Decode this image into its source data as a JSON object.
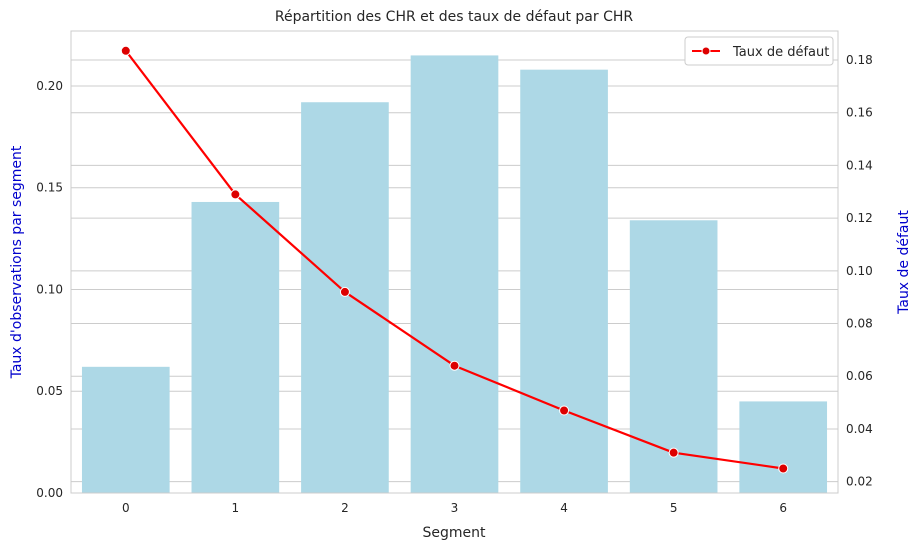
{
  "chart_data": {
    "type": "bar",
    "title": "Répartition des CHR et des taux de défaut par CHR",
    "xlabel": "Segment",
    "ylabel_left": "Taux d'observations par segment",
    "ylabel_right": "Taux de défaut",
    "categories": [
      "0",
      "1",
      "2",
      "3",
      "4",
      "5",
      "6"
    ],
    "ylim_left": [
      0,
      0.227
    ],
    "ylim_right": [
      0.0157,
      0.191
    ],
    "yticks_left": [
      "0.00",
      "0.05",
      "0.10",
      "0.15",
      "0.20"
    ],
    "yticks_right": [
      "0.02",
      "0.04",
      "0.06",
      "0.08",
      "0.10",
      "0.12",
      "0.14",
      "0.16",
      "0.18"
    ],
    "grid": true,
    "legend_position": "top-right",
    "series": [
      {
        "kind": "bar",
        "axis": "left",
        "color": "#add8e6",
        "values": [
          0.062,
          0.143,
          0.192,
          0.215,
          0.208,
          0.134,
          0.045
        ]
      },
      {
        "kind": "line",
        "axis": "right",
        "name": "Taux de défaut",
        "color": "#ff0000",
        "values": [
          0.1835,
          0.129,
          0.092,
          0.064,
          0.047,
          0.031,
          0.025
        ]
      }
    ]
  }
}
